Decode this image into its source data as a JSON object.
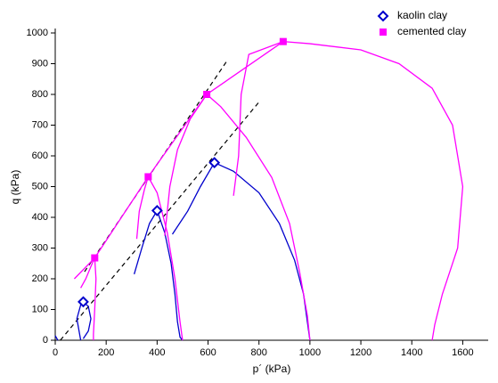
{
  "chart_data": {
    "type": "line",
    "xlabel": "p´ (kPa)",
    "ylabel": "q (kPa)",
    "xlim": [
      0,
      1700
    ],
    "ylim": [
      0,
      1000
    ],
    "xticks": [
      0,
      200,
      400,
      600,
      800,
      1000,
      1200,
      1400,
      1600
    ],
    "yticks": [
      0,
      100,
      200,
      300,
      400,
      500,
      600,
      700,
      800,
      900,
      1000
    ],
    "legend": "top-right",
    "series": [
      {
        "name": "kaolin clay",
        "color": "#0000cc",
        "marker": "diamond",
        "x": [
          110,
          400,
          625
        ],
        "y": [
          125,
          422,
          578
        ]
      },
      {
        "name": "cemented clay",
        "color": "#ff00ff",
        "marker": "square",
        "x": [
          155,
          365,
          595,
          895
        ],
        "y": [
          268,
          532,
          800,
          972
        ]
      },
      {
        "color": "#000000",
        "dash": true,
        "x": [
          20,
          800
        ],
        "y": [
          0,
          775
        ]
      },
      {
        "color": "#000000",
        "dash": true,
        "x": [
          115,
          675
        ],
        "y": [
          223,
          910
        ]
      },
      {
        "color": "#ff00ff",
        "x": [
          75,
          155,
          365,
          595,
          895
        ],
        "y": [
          200,
          268,
          532,
          800,
          972
        ]
      },
      {
        "color": "#0000cc",
        "x": [
          0,
          10
        ],
        "y": [
          15,
          0
        ]
      },
      {
        "color": "#0000cc",
        "x": [
          100,
          85,
          100,
          110,
          130,
          140,
          130,
          110
        ],
        "y": [
          0,
          70,
          115,
          125,
          110,
          70,
          30,
          5
        ]
      },
      {
        "color": "#0000cc",
        "x": [
          310,
          340,
          370,
          400,
          430,
          455,
          470,
          480,
          490,
          500
        ],
        "y": [
          215,
          300,
          380,
          422,
          350,
          250,
          150,
          60,
          10,
          0
        ]
      },
      {
        "color": "#0000cc",
        "x": [
          460,
          520,
          570,
          625,
          700,
          800,
          880,
          940,
          975,
          990,
          1000
        ],
        "y": [
          345,
          420,
          500,
          578,
          550,
          480,
          380,
          260,
          150,
          60,
          0
        ]
      },
      {
        "color": "#ff00ff",
        "x": [
          100,
          120,
          140,
          155,
          160,
          155,
          150,
          150
        ],
        "y": [
          170,
          200,
          240,
          268,
          200,
          100,
          20,
          0
        ]
      },
      {
        "color": "#ff00ff",
        "x": [
          320,
          330,
          350,
          365,
          400,
          440,
          470,
          490,
          500
        ],
        "y": [
          330,
          420,
          490,
          532,
          480,
          350,
          200,
          60,
          0
        ]
      },
      {
        "color": "#ff00ff",
        "x": [
          430,
          450,
          480,
          530,
          595,
          650,
          750,
          850,
          920,
          960,
          990,
          1000
        ],
        "y": [
          340,
          500,
          620,
          720,
          800,
          760,
          660,
          530,
          380,
          220,
          80,
          0
        ]
      },
      {
        "color": "#ff00ff",
        "x": [
          700,
          720,
          730,
          760,
          895,
          1000,
          1200,
          1350,
          1480,
          1560,
          1600,
          1580,
          1520,
          1490,
          1480
        ],
        "y": [
          470,
          600,
          800,
          930,
          972,
          965,
          945,
          900,
          820,
          700,
          500,
          300,
          150,
          50,
          0
        ]
      }
    ]
  }
}
